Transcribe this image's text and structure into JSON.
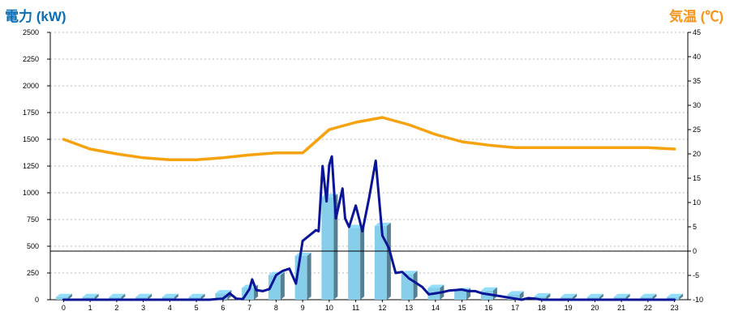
{
  "chart_data": {
    "type": "bar",
    "grid": true,
    "left_axis": {
      "title": "電力 (kW)",
      "color": "#0a6eb4",
      "range": [
        0,
        2500
      ],
      "ticks": [
        "0",
        "250",
        "500",
        "750",
        "1000",
        "1250",
        "1500",
        "1750",
        "2000",
        "2250",
        "2500"
      ]
    },
    "right_axis": {
      "title": "気温 (℃)",
      "color": "#f7941d",
      "range": [
        -10,
        45
      ],
      "ticks": [
        "-10",
        "-5",
        "0",
        "5",
        "10",
        "15",
        "20",
        "25",
        "30",
        "35",
        "40",
        "45"
      ]
    },
    "categories": [
      "0",
      "1",
      "2",
      "3",
      "4",
      "5",
      "6",
      "7",
      "8",
      "9",
      "10",
      "11",
      "12",
      "13",
      "14",
      "15",
      "16",
      "17",
      "18",
      "19",
      "20",
      "21",
      "22",
      "23"
    ],
    "series": [
      {
        "kind": "bar",
        "axis": "left",
        "color": "#87ceeb",
        "values": [
          25,
          25,
          25,
          25,
          25,
          25,
          60,
          110,
          230,
          410,
          960,
          670,
          690,
          240,
          110,
          80,
          85,
          50,
          30,
          25,
          25,
          25,
          25,
          25
        ]
      },
      {
        "kind": "line",
        "axis": "left",
        "color": "#0a1496",
        "x": [
          0,
          1,
          2,
          3,
          4,
          5,
          5.5,
          5.75,
          6.0,
          6.25,
          6.5,
          6.75,
          7.0,
          7.1,
          7.25,
          7.5,
          7.75,
          8.0,
          8.25,
          8.5,
          8.75,
          9.0,
          9.25,
          9.5,
          9.6,
          9.75,
          9.9,
          10.0,
          10.1,
          10.25,
          10.5,
          10.6,
          10.75,
          11.0,
          11.25,
          11.5,
          11.75,
          12.0,
          12.25,
          12.5,
          12.75,
          13.0,
          13.25,
          13.5,
          13.75,
          14.0,
          14.25,
          14.5,
          14.75,
          15.0,
          15.25,
          15.5,
          15.75,
          16.0,
          16.25,
          16.5,
          16.75,
          17.0,
          17.25,
          17.5,
          17.75,
          18.0,
          19,
          20,
          21,
          22,
          23
        ],
        "y": [
          0,
          0,
          0,
          0,
          0,
          0,
          0,
          5,
          10,
          60,
          10,
          5,
          100,
          190,
          90,
          80,
          100,
          230,
          270,
          290,
          150,
          550,
          600,
          650,
          640,
          1250,
          920,
          1260,
          1340,
          760,
          1040,
          760,
          680,
          880,
          640,
          950,
          1300,
          600,
          480,
          250,
          260,
          200,
          160,
          120,
          50,
          60,
          70,
          85,
          90,
          95,
          80,
          80,
          60,
          50,
          40,
          30,
          20,
          10,
          0,
          15,
          10,
          0,
          0,
          0,
          0,
          0,
          0
        ]
      },
      {
        "kind": "line",
        "axis": "right",
        "color": "#f7a20d",
        "x": [
          0,
          1,
          2,
          3,
          4,
          5,
          6,
          7,
          8,
          9,
          10,
          11,
          12,
          13,
          14,
          15,
          16,
          17,
          18,
          19,
          20,
          21,
          22,
          23
        ],
        "y": [
          23,
          21,
          20,
          19.2,
          18.8,
          18.8,
          19.2,
          19.8,
          20.2,
          20.2,
          25,
          26.5,
          27.5,
          26,
          24,
          22.5,
          21.8,
          21.3,
          21.3,
          21.3,
          21.3,
          21.3,
          21.3,
          21
        ]
      }
    ],
    "reference_line": {
      "axis": "right",
      "value": 0,
      "color": "#000000"
    }
  }
}
